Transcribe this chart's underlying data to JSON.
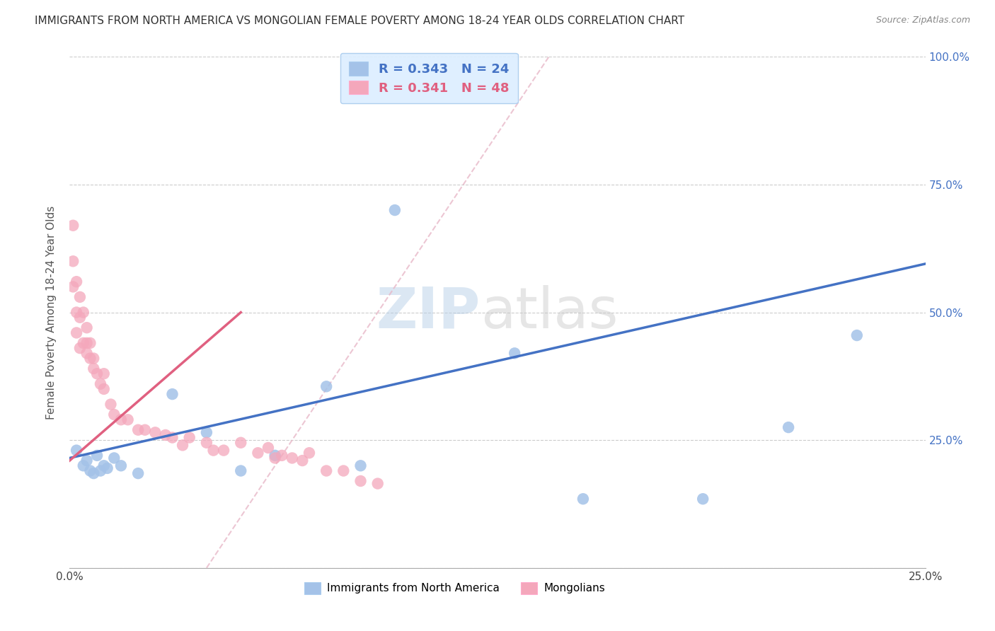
{
  "title": "IMMIGRANTS FROM NORTH AMERICA VS MONGOLIAN FEMALE POVERTY AMONG 18-24 YEAR OLDS CORRELATION CHART",
  "source": "Source: ZipAtlas.com",
  "ylabel": "Female Poverty Among 18-24 Year Olds",
  "xlim": [
    0.0,
    0.25
  ],
  "ylim": [
    0.0,
    1.0
  ],
  "xticks": [
    0.0,
    0.05,
    0.1,
    0.15,
    0.2,
    0.25
  ],
  "xtick_labels": [
    "0.0%",
    "",
    "",
    "",
    "",
    "25.0%"
  ],
  "yticks": [
    0.0,
    0.25,
    0.5,
    0.75,
    1.0
  ],
  "ytick_labels_right": [
    "",
    "25.0%",
    "50.0%",
    "75.0%",
    "100.0%"
  ],
  "blue_color": "#a4c2e8",
  "pink_color": "#f4a7bb",
  "blue_line_color": "#4472c4",
  "pink_line_color": "#e06080",
  "dashed_line_color": "#e8b8c8",
  "watermark_zip": "ZIP",
  "watermark_atlas": "atlas",
  "legend_blue_R": "0.343",
  "legend_blue_N": "24",
  "legend_pink_R": "0.341",
  "legend_pink_N": "48",
  "blue_x": [
    0.002,
    0.004,
    0.005,
    0.006,
    0.007,
    0.008,
    0.009,
    0.01,
    0.011,
    0.013,
    0.015,
    0.02,
    0.03,
    0.04,
    0.05,
    0.06,
    0.075,
    0.085,
    0.095,
    0.13,
    0.15,
    0.185,
    0.21,
    0.23
  ],
  "blue_y": [
    0.23,
    0.2,
    0.21,
    0.19,
    0.185,
    0.22,
    0.19,
    0.2,
    0.195,
    0.215,
    0.2,
    0.185,
    0.34,
    0.265,
    0.19,
    0.22,
    0.355,
    0.2,
    0.7,
    0.42,
    0.135,
    0.135,
    0.275,
    0.455
  ],
  "pink_x": [
    0.001,
    0.001,
    0.001,
    0.002,
    0.002,
    0.002,
    0.003,
    0.003,
    0.003,
    0.004,
    0.004,
    0.005,
    0.005,
    0.005,
    0.006,
    0.006,
    0.007,
    0.007,
    0.008,
    0.009,
    0.01,
    0.01,
    0.012,
    0.013,
    0.015,
    0.017,
    0.02,
    0.022,
    0.025,
    0.028,
    0.03,
    0.033,
    0.035,
    0.04,
    0.042,
    0.045,
    0.05,
    0.055,
    0.058,
    0.06,
    0.062,
    0.065,
    0.068,
    0.07,
    0.075,
    0.08,
    0.085,
    0.09
  ],
  "pink_y": [
    0.67,
    0.6,
    0.55,
    0.56,
    0.5,
    0.46,
    0.53,
    0.49,
    0.43,
    0.5,
    0.44,
    0.44,
    0.47,
    0.42,
    0.41,
    0.44,
    0.41,
    0.39,
    0.38,
    0.36,
    0.35,
    0.38,
    0.32,
    0.3,
    0.29,
    0.29,
    0.27,
    0.27,
    0.265,
    0.26,
    0.255,
    0.24,
    0.255,
    0.245,
    0.23,
    0.23,
    0.245,
    0.225,
    0.235,
    0.215,
    0.22,
    0.215,
    0.21,
    0.225,
    0.19,
    0.19,
    0.17,
    0.165
  ],
  "blue_trend_x": [
    0.0,
    0.25
  ],
  "blue_trend_y": [
    0.215,
    0.595
  ],
  "pink_trend_x": [
    0.0,
    0.05
  ],
  "pink_trend_y": [
    0.21,
    0.5
  ],
  "dashed_trend_x": [
    0.04,
    0.14
  ],
  "dashed_trend_y": [
    0.0,
    1.0
  ],
  "background_color": "#ffffff",
  "grid_color": "#cccccc"
}
